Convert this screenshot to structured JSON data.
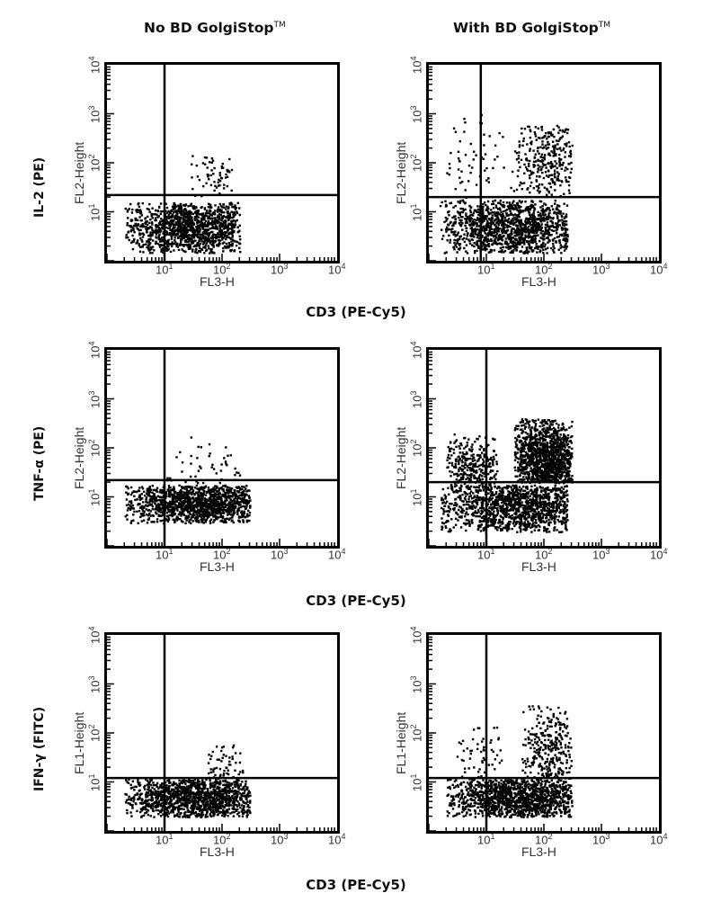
{
  "column_titles": {
    "left": "No BD GolgiStop",
    "right": "With BD GolgiStop",
    "tm": "TM"
  },
  "row_labels": [
    "IL-2 (PE)",
    "TNF-α (PE)",
    "IFN-γ (FITC)"
  ],
  "x_axis_title": "CD3 (PE-Cy5)",
  "tick_base": "10",
  "tick_exponents": [
    "1",
    "2",
    "3",
    "4"
  ],
  "chart_data": [
    {
      "type": "scatter",
      "row": 0,
      "col": 0,
      "title": "No BD GolgiStop",
      "xlabel": "FL3-H",
      "ylabel": "FL2-Height",
      "row_label": "IL-2 (PE)",
      "xscale": "log",
      "yscale": "log",
      "xlim": [
        1,
        10000
      ],
      "ylim": [
        1,
        10000
      ],
      "quadrant_gate": {
        "x": 10,
        "y": 22
      },
      "populations": [
        {
          "x_range": [
            2,
            200
          ],
          "y_range": [
            1.5,
            16
          ],
          "center": [
            30,
            5
          ],
          "density": "high"
        },
        {
          "x_range": [
            20,
            150
          ],
          "y_range": [
            20,
            150
          ],
          "center": [
            80,
            50
          ],
          "density": "sparse"
        }
      ]
    },
    {
      "type": "scatter",
      "row": 0,
      "col": 1,
      "title": "With BD GolgiStop",
      "xlabel": "FL3-H",
      "ylabel": "FL2-Height",
      "row_label": "IL-2 (PE)",
      "xscale": "log",
      "yscale": "log",
      "xlim": [
        1,
        10000
      ],
      "ylim": [
        1,
        10000
      ],
      "quadrant_gate": {
        "x": 8,
        "y": 20
      },
      "populations": [
        {
          "x_range": [
            1.5,
            250
          ],
          "y_range": [
            1.5,
            18
          ],
          "center": [
            30,
            5
          ],
          "density": "high"
        },
        {
          "x_range": [
            30,
            300
          ],
          "y_range": [
            20,
            600
          ],
          "center": [
            120,
            150
          ],
          "density": "medium"
        },
        {
          "x_range": [
            2,
            30
          ],
          "y_range": [
            20,
            1200
          ],
          "center": [
            6,
            100
          ],
          "density": "sparse"
        }
      ]
    },
    {
      "type": "scatter",
      "row": 1,
      "col": 0,
      "title": "No BD GolgiStop",
      "xlabel": "FL3-H",
      "ylabel": "FL2-Height",
      "row_label": "TNF-α (PE)",
      "xscale": "log",
      "yscale": "log",
      "xlim": [
        1,
        10000
      ],
      "ylim": [
        1,
        10000
      ],
      "quadrant_gate": {
        "x": 10,
        "y": 22
      },
      "populations": [
        {
          "x_range": [
            2,
            300
          ],
          "y_range": [
            3,
            18
          ],
          "center": [
            40,
            8
          ],
          "density": "high"
        },
        {
          "x_range": [
            10,
            200
          ],
          "y_range": [
            20,
            200
          ],
          "center": [
            60,
            30
          ],
          "density": "sparse"
        }
      ]
    },
    {
      "type": "scatter",
      "row": 1,
      "col": 1,
      "title": "With BD GolgiStop",
      "xlabel": "FL3-H",
      "ylabel": "FL2-Height",
      "row_label": "TNF-α (PE)",
      "xscale": "log",
      "yscale": "log",
      "xlim": [
        1,
        10000
      ],
      "ylim": [
        1,
        10000
      ],
      "quadrant_gate": {
        "x": 10,
        "y": 20
      },
      "populations": [
        {
          "x_range": [
            1.5,
            250
          ],
          "y_range": [
            2,
            18
          ],
          "center": [
            40,
            7
          ],
          "density": "high"
        },
        {
          "x_range": [
            30,
            300
          ],
          "y_range": [
            20,
            400
          ],
          "center": [
            100,
            60
          ],
          "density": "high"
        },
        {
          "x_range": [
            2,
            15
          ],
          "y_range": [
            15,
            200
          ],
          "center": [
            5,
            40
          ],
          "density": "medium"
        }
      ]
    },
    {
      "type": "scatter",
      "row": 2,
      "col": 0,
      "title": "No BD GolgiStop",
      "xlabel": "FL3-H",
      "ylabel": "FL1-Height",
      "row_label": "IFN-γ (FITC)",
      "xscale": "log",
      "yscale": "log",
      "xlim": [
        1,
        10000
      ],
      "ylim": [
        1,
        10000
      ],
      "quadrant_gate": {
        "x": 10,
        "y": 12
      },
      "populations": [
        {
          "x_range": [
            2,
            300
          ],
          "y_range": [
            2,
            12
          ],
          "center": [
            40,
            5
          ],
          "density": "high"
        },
        {
          "x_range": [
            50,
            250
          ],
          "y_range": [
            12,
            60
          ],
          "center": [
            100,
            20
          ],
          "density": "sparse"
        }
      ]
    },
    {
      "type": "scatter",
      "row": 2,
      "col": 1,
      "title": "With BD GolgiStop",
      "xlabel": "FL3-H",
      "ylabel": "FL1-Height",
      "row_label": "IFN-γ (FITC)",
      "xscale": "log",
      "yscale": "log",
      "xlim": [
        1,
        10000
      ],
      "ylim": [
        1,
        10000
      ],
      "quadrant_gate": {
        "x": 10,
        "y": 12
      },
      "populations": [
        {
          "x_range": [
            2,
            300
          ],
          "y_range": [
            2,
            12
          ],
          "center": [
            40,
            5
          ],
          "density": "high"
        },
        {
          "x_range": [
            40,
            300
          ],
          "y_range": [
            12,
            400
          ],
          "center": [
            120,
            40
          ],
          "density": "medium"
        },
        {
          "x_range": [
            3,
            20
          ],
          "y_range": [
            12,
            150
          ],
          "center": [
            6,
            30
          ],
          "density": "sparse"
        }
      ]
    }
  ]
}
